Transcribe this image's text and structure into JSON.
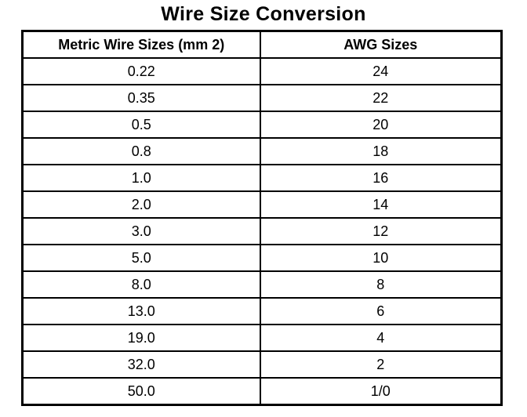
{
  "title": "Wire Size Conversion",
  "table": {
    "headers": [
      "Metric Wire Sizes (mm 2)",
      "AWG Sizes"
    ],
    "rows": [
      [
        "0.22",
        "24"
      ],
      [
        "0.35",
        "22"
      ],
      [
        "0.5",
        "20"
      ],
      [
        "0.8",
        "18"
      ],
      [
        "1.0",
        "16"
      ],
      [
        "2.0",
        "14"
      ],
      [
        "3.0",
        "12"
      ],
      [
        "5.0",
        "10"
      ],
      [
        "8.0",
        "8"
      ],
      [
        "13.0",
        "6"
      ],
      [
        "19.0",
        "4"
      ],
      [
        "32.0",
        "2"
      ],
      [
        "50.0",
        "1/0"
      ]
    ]
  }
}
